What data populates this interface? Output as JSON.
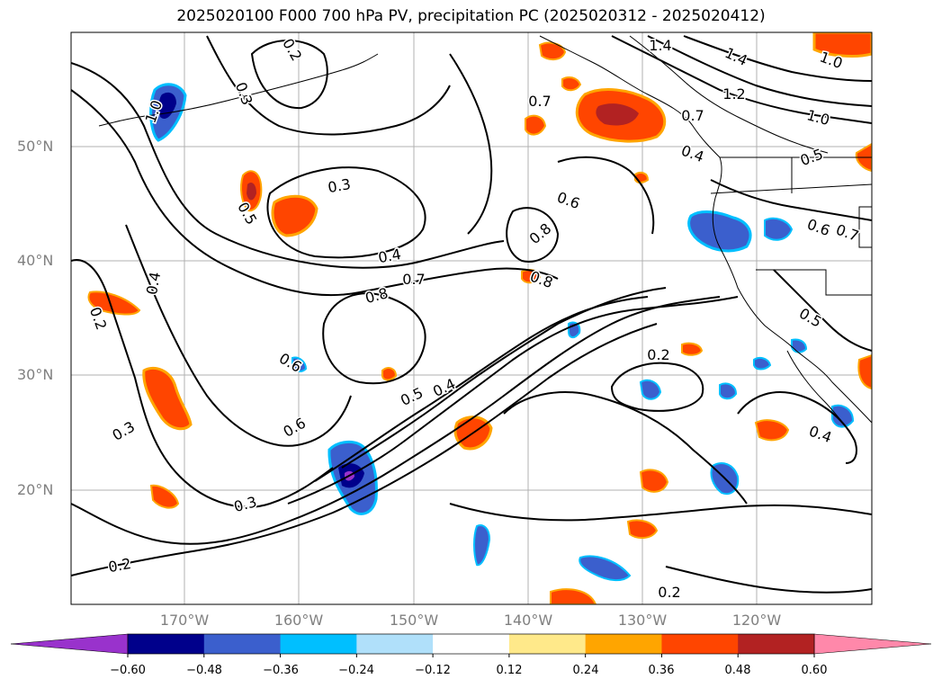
{
  "title": "2025020100 F000 700 hPa PV, precipitation PC (2025020312 - 2025020412)",
  "map": {
    "lat_labels": [
      "50°N",
      "40°N",
      "30°N",
      "20°N"
    ],
    "lon_labels": [
      "170°W",
      "160°W",
      "150°W",
      "140°W",
      "130°W",
      "120°W"
    ],
    "contour_labels": [
      "1.4",
      "1.4",
      "1.2",
      "1.0",
      "1.0",
      "0.7",
      "0.4",
      "0.5",
      "0.7",
      "0.6",
      "0.8",
      "0.8",
      "0.7",
      "0.8",
      "0.4",
      "0.3",
      "0.5",
      "0.3",
      "0.2",
      "0.4",
      "0.2",
      "0.6",
      "0.6",
      "0.5",
      "0.4",
      "0.3",
      "0.3",
      "0.2",
      "0.2",
      "0.2",
      "0.4",
      "0.5",
      "0.6",
      "0.7",
      "1.0"
    ]
  },
  "colorbar": {
    "ticks": [
      "−0.60",
      "−0.48",
      "−0.36",
      "−0.24",
      "−0.12",
      "0.12",
      "0.24",
      "0.36",
      "0.48",
      "0.60"
    ],
    "colors": [
      "#9932cc",
      "#00008b",
      "#3b5fcd",
      "#00bfff",
      "#b0e0fa",
      "#ffffff",
      "#ffe98a",
      "#ffa500",
      "#ff4500",
      "#b22222",
      "#ff88aa"
    ]
  }
}
